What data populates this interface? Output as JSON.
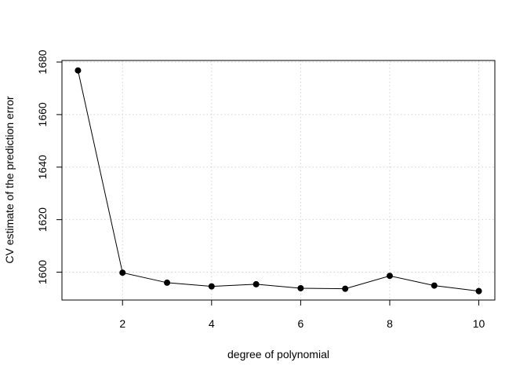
{
  "chart_data": {
    "type": "line",
    "title": "",
    "xlabel": "degree of polynomial",
    "ylabel": "CV estimate of the prediction error",
    "x": [
      1,
      2,
      3,
      4,
      5,
      6,
      7,
      8,
      9,
      10
    ],
    "series": [
      {
        "values": [
          1676.8,
          1599.8,
          1596.0,
          1594.6,
          1595.4,
          1593.9,
          1593.7,
          1598.6,
          1594.9,
          1592.8
        ],
        "marker": "filled-circle",
        "color": "#000000"
      }
    ],
    "xlim": [
      0.64,
      10.36
    ],
    "ylim": [
      1589.4,
      1680.6
    ],
    "xticks": [
      2,
      4,
      6,
      8,
      10
    ],
    "yticks": [
      1600,
      1620,
      1640,
      1660,
      1680
    ],
    "xtick_labels": [
      "2",
      "4",
      "6",
      "8",
      "10"
    ],
    "ytick_labels": [
      "1600",
      "1620",
      "1640",
      "1660",
      "1680"
    ],
    "grid": true,
    "legend": "none"
  }
}
